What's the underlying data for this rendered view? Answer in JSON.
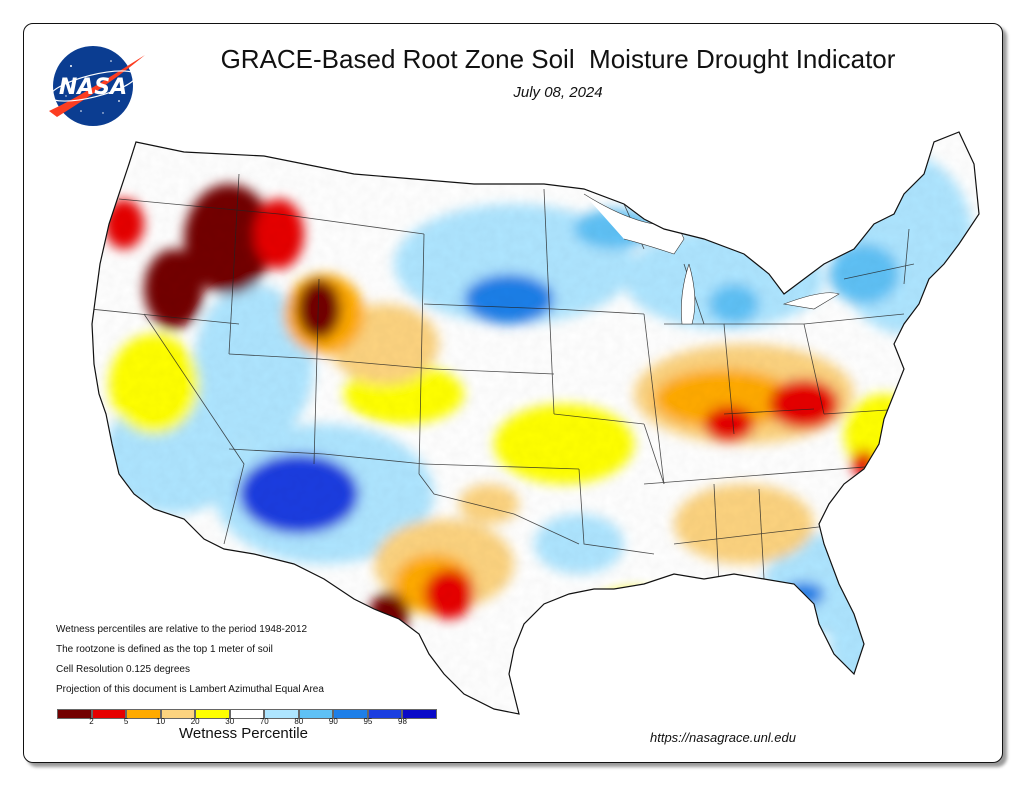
{
  "header": {
    "title": "GRACE-Based Root Zone Soil  Moisture Drought Indicator",
    "date": "July 08, 2024",
    "logo_text": "NASA"
  },
  "notes": [
    "Wetness percentiles are relative to the period 1948-2012",
    "The rootzone is defined as the top 1 meter of soil",
    "Cell Resolution 0.125 degrees",
    "Projection of this document is Lambert Azimuthal Equal Area"
  ],
  "legend": {
    "title": "Wetness Percentile",
    "ticks": [
      "2",
      "5",
      "10",
      "20",
      "30",
      "70",
      "80",
      "90",
      "95",
      "98"
    ],
    "colors": [
      "#730000",
      "#e60000",
      "#ffaa00",
      "#fcd37f",
      "#ffff00",
      "#ffffff",
      "#aee5ff",
      "#5fc1f5",
      "#1e7fe8",
      "#1a3ee0",
      "#0a0ac8"
    ]
  },
  "footer": {
    "url": "https://nasagrace.unl.edu"
  }
}
